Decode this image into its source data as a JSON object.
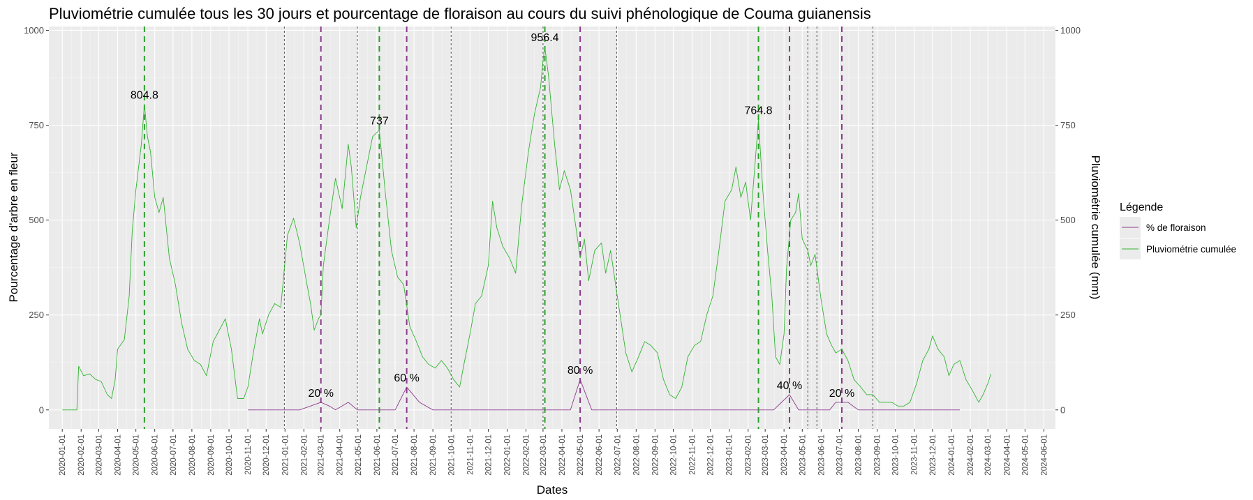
{
  "chart_data": {
    "type": "line",
    "title": "Pluviométrie cumulée tous les 30 jours et pourcentage de floraison au cours du suivi phénologique de Couma guianensis",
    "xlabel": "Dates",
    "ylabel_left": "Pourcentage d'arbre en fleur",
    "ylabel_right": "Pluviométrie cumulée (mm)",
    "xlim": [
      "2019-12-10",
      "2024-06-20"
    ],
    "ylim_left": [
      -50,
      1010
    ],
    "ylim_right": [
      -50,
      1010
    ],
    "y_ticks": [
      0,
      250,
      500,
      750,
      1000
    ],
    "x_ticks": [
      "2020-01-01",
      "2020-02-01",
      "2020-03-01",
      "2020-04-01",
      "2020-05-01",
      "2020-06-01",
      "2020-07-01",
      "2020-08-01",
      "2020-09-01",
      "2020-10-01",
      "2020-11-01",
      "2020-12-01",
      "2021-01-01",
      "2021-02-01",
      "2021-03-01",
      "2021-04-01",
      "2021-05-01",
      "2021-06-01",
      "2021-07-01",
      "2021-08-01",
      "2021-09-01",
      "2021-10-01",
      "2021-11-01",
      "2021-12-01",
      "2022-01-01",
      "2022-02-01",
      "2022-03-01",
      "2022-04-01",
      "2022-05-01",
      "2022-06-01",
      "2022-07-01",
      "2022-08-01",
      "2022-09-01",
      "2022-10-01",
      "2022-11-01",
      "2022-12-01",
      "2023-01-01",
      "2023-02-01",
      "2023-03-01",
      "2023-04-01",
      "2023-05-01",
      "2023-06-01",
      "2023-07-01",
      "2023-08-01",
      "2023-09-01",
      "2023-10-01",
      "2023-11-01",
      "2023-12-01",
      "2024-01-01",
      "2024-02-01",
      "2024-03-01",
      "2024-04-01",
      "2024-05-01",
      "2024-06-01"
    ],
    "grid": true,
    "legend": {
      "title": "Légende",
      "position": "right",
      "entries": [
        {
          "label": "% de floraison",
          "color": "#8b3a8b"
        },
        {
          "label": "Pluviométrie cumulée",
          "color": "#33b333"
        }
      ]
    },
    "series": [
      {
        "name": "% de floraison",
        "axis": "left",
        "color": "#8b3a8b",
        "points": [
          [
            "2020-11-01",
            0
          ],
          [
            "2021-01-25",
            0
          ],
          [
            "2021-03-01",
            20
          ],
          [
            "2021-03-15",
            10
          ],
          [
            "2021-03-25",
            0
          ],
          [
            "2021-04-15",
            20
          ],
          [
            "2021-04-30",
            0
          ],
          [
            "2021-06-15",
            0
          ],
          [
            "2021-07-01",
            0
          ],
          [
            "2021-07-20",
            60
          ],
          [
            "2021-08-10",
            20
          ],
          [
            "2021-09-01",
            0
          ],
          [
            "2022-04-15",
            0
          ],
          [
            "2022-05-01",
            80
          ],
          [
            "2022-05-20",
            0
          ],
          [
            "2023-03-15",
            0
          ],
          [
            "2023-04-10",
            40
          ],
          [
            "2023-04-25",
            0
          ],
          [
            "2023-06-15",
            0
          ],
          [
            "2023-06-25",
            20
          ],
          [
            "2023-07-15",
            20
          ],
          [
            "2023-08-01",
            0
          ],
          [
            "2024-01-15",
            0
          ]
        ]
      },
      {
        "name": "Pluviométrie cumulée",
        "axis": "right",
        "color": "#33b333",
        "points": [
          [
            "2020-01-01",
            0
          ],
          [
            "2020-01-25",
            0
          ],
          [
            "2020-01-28",
            115
          ],
          [
            "2020-02-05",
            90
          ],
          [
            "2020-02-15",
            95
          ],
          [
            "2020-02-25",
            80
          ],
          [
            "2020-03-05",
            75
          ],
          [
            "2020-03-15",
            40
          ],
          [
            "2020-03-22",
            30
          ],
          [
            "2020-03-28",
            80
          ],
          [
            "2020-04-01",
            160
          ],
          [
            "2020-04-12",
            185
          ],
          [
            "2020-04-20",
            300
          ],
          [
            "2020-04-25",
            470
          ],
          [
            "2020-05-01",
            580
          ],
          [
            "2020-05-10",
            700
          ],
          [
            "2020-05-15",
            804.8
          ],
          [
            "2020-05-20",
            720
          ],
          [
            "2020-05-25",
            680
          ],
          [
            "2020-06-01",
            560
          ],
          [
            "2020-06-08",
            520
          ],
          [
            "2020-06-15",
            560
          ],
          [
            "2020-06-25",
            400
          ],
          [
            "2020-07-05",
            330
          ],
          [
            "2020-07-15",
            230
          ],
          [
            "2020-07-25",
            160
          ],
          [
            "2020-08-05",
            130
          ],
          [
            "2020-08-15",
            120
          ],
          [
            "2020-08-25",
            90
          ],
          [
            "2020-09-05",
            180
          ],
          [
            "2020-09-15",
            210
          ],
          [
            "2020-09-25",
            240
          ],
          [
            "2020-10-05",
            160
          ],
          [
            "2020-10-15",
            30
          ],
          [
            "2020-10-25",
            30
          ],
          [
            "2020-11-01",
            60
          ],
          [
            "2020-11-10",
            150
          ],
          [
            "2020-11-20",
            240
          ],
          [
            "2020-11-25",
            200
          ],
          [
            "2020-12-05",
            250
          ],
          [
            "2020-12-15",
            280
          ],
          [
            "2020-12-25",
            270
          ],
          [
            "2021-01-05",
            460
          ],
          [
            "2021-01-15",
            505
          ],
          [
            "2021-01-25",
            440
          ],
          [
            "2021-02-05",
            340
          ],
          [
            "2021-02-12",
            280
          ],
          [
            "2021-02-18",
            210
          ],
          [
            "2021-02-25",
            240
          ],
          [
            "2021-03-01",
            250
          ],
          [
            "2021-03-05",
            380
          ],
          [
            "2021-03-15",
            500
          ],
          [
            "2021-03-25",
            610
          ],
          [
            "2021-04-05",
            530
          ],
          [
            "2021-04-15",
            700
          ],
          [
            "2021-04-20",
            640
          ],
          [
            "2021-04-28",
            480
          ],
          [
            "2021-05-05",
            560
          ],
          [
            "2021-05-15",
            640
          ],
          [
            "2021-05-25",
            720
          ],
          [
            "2021-06-05",
            737
          ],
          [
            "2021-06-15",
            570
          ],
          [
            "2021-06-25",
            420
          ],
          [
            "2021-07-05",
            350
          ],
          [
            "2021-07-15",
            330
          ],
          [
            "2021-07-25",
            220
          ],
          [
            "2021-08-05",
            180
          ],
          [
            "2021-08-15",
            140
          ],
          [
            "2021-08-25",
            120
          ],
          [
            "2021-09-05",
            110
          ],
          [
            "2021-09-15",
            130
          ],
          [
            "2021-09-25",
            110
          ],
          [
            "2021-10-05",
            80
          ],
          [
            "2021-10-15",
            60
          ],
          [
            "2021-10-22",
            120
          ],
          [
            "2021-11-01",
            200
          ],
          [
            "2021-11-10",
            280
          ],
          [
            "2021-11-20",
            300
          ],
          [
            "2021-12-01",
            380
          ],
          [
            "2021-12-08",
            550
          ],
          [
            "2021-12-15",
            480
          ],
          [
            "2021-12-25",
            430
          ],
          [
            "2022-01-05",
            400
          ],
          [
            "2022-01-15",
            360
          ],
          [
            "2022-01-25",
            540
          ],
          [
            "2022-02-05",
            680
          ],
          [
            "2022-02-15",
            780
          ],
          [
            "2022-02-25",
            850
          ],
          [
            "2022-03-01",
            920
          ],
          [
            "2022-03-04",
            956.4
          ],
          [
            "2022-03-10",
            880
          ],
          [
            "2022-03-20",
            700
          ],
          [
            "2022-03-28",
            580
          ],
          [
            "2022-04-05",
            630
          ],
          [
            "2022-04-15",
            580
          ],
          [
            "2022-04-25",
            470
          ],
          [
            "2022-05-01",
            400
          ],
          [
            "2022-05-08",
            450
          ],
          [
            "2022-05-15",
            340
          ],
          [
            "2022-05-25",
            420
          ],
          [
            "2022-06-05",
            440
          ],
          [
            "2022-06-12",
            360
          ],
          [
            "2022-06-20",
            420
          ],
          [
            "2022-07-01",
            300
          ],
          [
            "2022-07-15",
            150
          ],
          [
            "2022-07-25",
            100
          ],
          [
            "2022-08-05",
            140
          ],
          [
            "2022-08-15",
            180
          ],
          [
            "2022-08-25",
            170
          ],
          [
            "2022-09-05",
            150
          ],
          [
            "2022-09-15",
            80
          ],
          [
            "2022-09-25",
            40
          ],
          [
            "2022-10-05",
            30
          ],
          [
            "2022-10-15",
            60
          ],
          [
            "2022-10-25",
            140
          ],
          [
            "2022-11-05",
            170
          ],
          [
            "2022-11-15",
            180
          ],
          [
            "2022-11-25",
            250
          ],
          [
            "2022-12-05",
            300
          ],
          [
            "2022-12-15",
            420
          ],
          [
            "2022-12-25",
            550
          ],
          [
            "2023-01-05",
            580
          ],
          [
            "2023-01-12",
            640
          ],
          [
            "2023-01-20",
            560
          ],
          [
            "2023-01-28",
            600
          ],
          [
            "2023-02-05",
            500
          ],
          [
            "2023-02-12",
            640
          ],
          [
            "2023-02-18",
            764.8
          ],
          [
            "2023-02-25",
            580
          ],
          [
            "2023-03-05",
            420
          ],
          [
            "2023-03-12",
            300
          ],
          [
            "2023-03-18",
            140
          ],
          [
            "2023-03-25",
            120
          ],
          [
            "2023-04-01",
            200
          ],
          [
            "2023-04-05",
            370
          ],
          [
            "2023-04-12",
            500
          ],
          [
            "2023-04-20",
            520
          ],
          [
            "2023-04-25",
            570
          ],
          [
            "2023-05-01",
            450
          ],
          [
            "2023-05-10",
            420
          ],
          [
            "2023-05-15",
            380
          ],
          [
            "2023-05-22",
            410
          ],
          [
            "2023-06-01",
            290
          ],
          [
            "2023-06-10",
            200
          ],
          [
            "2023-06-18",
            170
          ],
          [
            "2023-06-25",
            150
          ],
          [
            "2023-07-05",
            160
          ],
          [
            "2023-07-15",
            130
          ],
          [
            "2023-07-25",
            80
          ],
          [
            "2023-08-05",
            60
          ],
          [
            "2023-08-15",
            40
          ],
          [
            "2023-08-25",
            40
          ],
          [
            "2023-09-05",
            20
          ],
          [
            "2023-09-15",
            20
          ],
          [
            "2023-09-25",
            20
          ],
          [
            "2023-10-05",
            10
          ],
          [
            "2023-10-15",
            10
          ],
          [
            "2023-10-25",
            20
          ],
          [
            "2023-11-05",
            70
          ],
          [
            "2023-11-15",
            130
          ],
          [
            "2023-11-25",
            160
          ],
          [
            "2023-12-01",
            195
          ],
          [
            "2023-12-10",
            160
          ],
          [
            "2023-12-20",
            140
          ],
          [
            "2023-12-28",
            90
          ],
          [
            "2024-01-05",
            120
          ],
          [
            "2024-01-15",
            130
          ],
          [
            "2024-01-25",
            80
          ],
          [
            "2024-02-05",
            50
          ],
          [
            "2024-02-15",
            20
          ],
          [
            "2024-02-22",
            40
          ],
          [
            "2024-03-01",
            70
          ],
          [
            "2024-03-06",
            95
          ]
        ]
      }
    ],
    "annotations": [
      {
        "x": "2020-05-15",
        "y": 804.8,
        "text": "804.8"
      },
      {
        "x": "2021-06-05",
        "y": 737,
        "text": "737"
      },
      {
        "x": "2022-03-04",
        "y": 956.4,
        "text": "956.4"
      },
      {
        "x": "2023-02-18",
        "y": 764.8,
        "text": "764.8"
      },
      {
        "x": "2021-03-01",
        "y": 20,
        "text": "20 %"
      },
      {
        "x": "2021-07-20",
        "y": 60,
        "text": "60 %"
      },
      {
        "x": "2022-05-01",
        "y": 80,
        "text": "80 %"
      },
      {
        "x": "2023-04-10",
        "y": 40,
        "text": "40 %"
      },
      {
        "x": "2023-07-05",
        "y": 20,
        "text": "20 %"
      }
    ],
    "vlines_green_dashed": [
      "2020-05-15",
      "2021-06-05",
      "2022-03-04",
      "2023-02-18"
    ],
    "vlines_purple_dashed": [
      "2021-03-01",
      "2021-07-20",
      "2022-05-01",
      "2023-04-10",
      "2023-07-05"
    ],
    "vlines_grey_dotted": [
      "2020-12-31",
      "2021-04-30",
      "2021-10-01",
      "2022-03-01",
      "2022-06-30",
      "2023-05-10",
      "2023-05-25",
      "2023-08-25"
    ]
  }
}
